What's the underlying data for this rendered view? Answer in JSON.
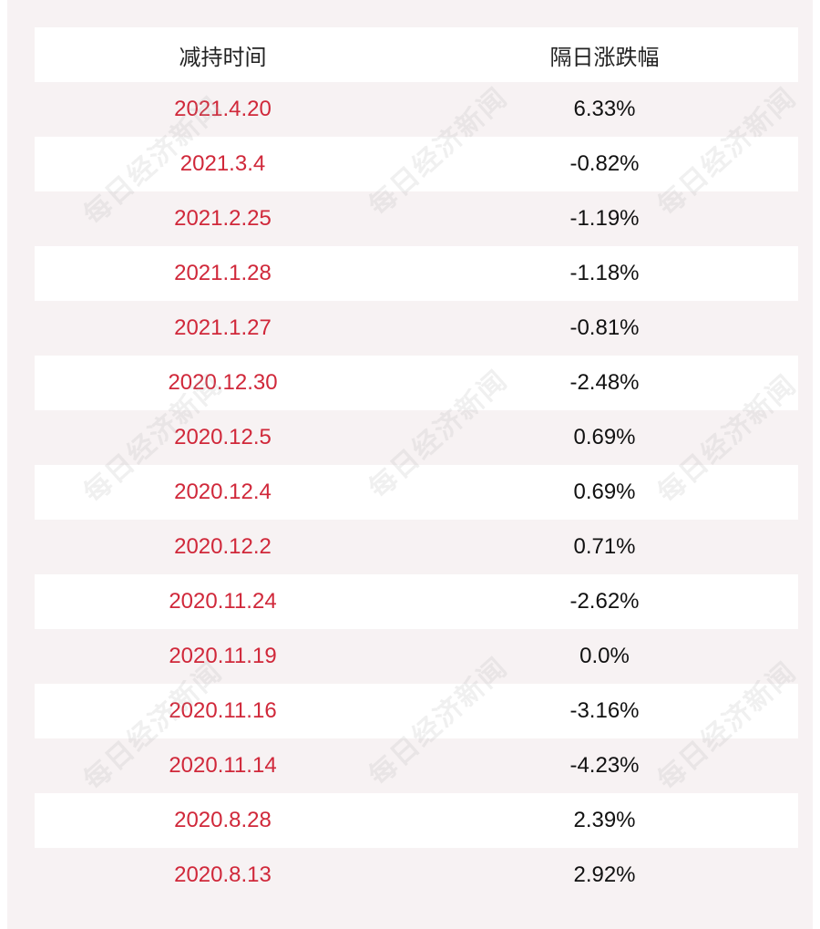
{
  "table": {
    "header": {
      "col1": "减持时间",
      "col2": "隔日涨跌幅"
    },
    "rows": [
      {
        "date": "2021.4.20",
        "change": "6.33%"
      },
      {
        "date": "2021.3.4",
        "change": "-0.82%"
      },
      {
        "date": "2021.2.25",
        "change": "-1.19%"
      },
      {
        "date": "2021.1.28",
        "change": "-1.18%"
      },
      {
        "date": "2021.1.27",
        "change": "-0.81%"
      },
      {
        "date": "2020.12.30",
        "change": "-2.48%"
      },
      {
        "date": "2020.12.5",
        "change": "0.69%"
      },
      {
        "date": "2020.12.4",
        "change": "0.69%"
      },
      {
        "date": "2020.12.2",
        "change": "0.71%"
      },
      {
        "date": "2020.11.24",
        "change": "-2.62%"
      },
      {
        "date": "2020.11.19",
        "change": "0.0%"
      },
      {
        "date": "2020.11.16",
        "change": "-3.16%"
      },
      {
        "date": "2020.11.14",
        "change": "-4.23%"
      },
      {
        "date": "2020.8.28",
        "change": "2.39%"
      },
      {
        "date": "2020.8.13",
        "change": "2.92%"
      }
    ]
  },
  "watermark": {
    "text": "每日经济新闻"
  },
  "colors": {
    "date_text": "#d0283a",
    "change_text": "#111111",
    "card_background": "#f7f2f3",
    "row_highlight": "#ffffff"
  }
}
